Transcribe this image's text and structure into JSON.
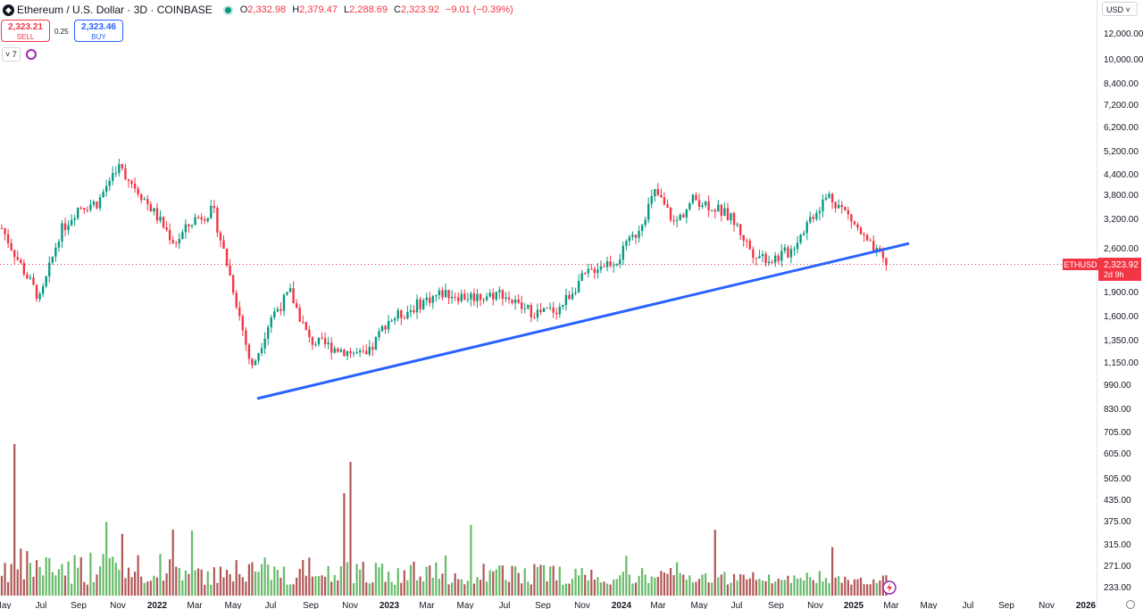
{
  "header": {
    "logo_glyph": "◆",
    "title": "Ethereum / U.S. Dollar · 3D · COINBASE",
    "ohlc": [
      {
        "key": "O",
        "value": "2,332.98"
      },
      {
        "key": "H",
        "value": "2,379.47"
      },
      {
        "key": "L",
        "value": "2,288.69"
      },
      {
        "key": "C",
        "value": "2,323.92"
      }
    ],
    "change": "−9.01 (−0.39%)"
  },
  "trade": {
    "sell_price": "2,323.21",
    "sell_label": "SELL",
    "spread": "0.25",
    "buy_price": "2,323.46",
    "buy_label": "BUY"
  },
  "indicators": {
    "collapse_label": "˅ 7",
    "icon": "refresh-icon"
  },
  "currency_button": "USD ˅",
  "price_axis": {
    "labels": [
      "12,000.00",
      "10,000.00",
      "8,400.00",
      "7,200.00",
      "6,200.00",
      "5,200.00",
      "4,400.00",
      "3,800.00",
      "3,200.00",
      "2,600.00",
      "1,900.00",
      "1,600.00",
      "1,350.00",
      "1,150.00",
      "990.00",
      "830.00",
      "705.00",
      "605.00",
      "505.00",
      "435.00",
      "375.00",
      "315.00",
      "271.00",
      "233.00"
    ],
    "symbol_tag": "ETHUSD",
    "last_price": "2,323.92",
    "countdown": "2d 9h"
  },
  "time_axis": {
    "labels": [
      "May",
      "Jul",
      "Sep",
      "Nov",
      "2022",
      "Mar",
      "May",
      "Jul",
      "Sep",
      "Nov",
      "2023",
      "Mar",
      "May",
      "Jul",
      "Sep",
      "Nov",
      "2024",
      "Mar",
      "May",
      "Jul",
      "Sep",
      "Nov",
      "2025",
      "Mar",
      "May",
      "Jul",
      "Sep",
      "Nov",
      "2026"
    ],
    "bold_labels": [
      "2022",
      "2023",
      "2024",
      "2025",
      "2026"
    ]
  },
  "chart_data": {
    "type": "candlestick",
    "symbol": "ETHUSD",
    "interval": "3D",
    "scale": "log",
    "price_points": [
      [
        "May",
        3000
      ],
      [
        "Jun",
        2300
      ],
      [
        "Jul",
        1800
      ],
      [
        "Aug",
        2900
      ],
      [
        "Sep",
        3500
      ],
      [
        "Oct",
        3600
      ],
      [
        "Nov",
        4700
      ],
      [
        "Dec",
        4000
      ],
      [
        "Jan",
        3300
      ],
      [
        "Feb",
        2700
      ],
      [
        "Mar",
        3200
      ],
      [
        "Apr",
        3400
      ],
      [
        "May",
        2000
      ],
      [
        "Jun",
        1100
      ],
      [
        "Jul",
        1600
      ],
      [
        "Aug",
        1900
      ],
      [
        "Sep",
        1350
      ],
      [
        "Oct",
        1300
      ],
      [
        "Nov",
        1250
      ],
      [
        "Dec",
        1200
      ],
      [
        "Jan",
        1550
      ],
      [
        "Feb",
        1650
      ],
      [
        "Mar",
        1800
      ],
      [
        "Apr",
        1900
      ],
      [
        "May",
        1850
      ],
      [
        "Jun",
        1850
      ],
      [
        "Jul",
        1900
      ],
      [
        "Aug",
        1700
      ],
      [
        "Sep",
        1640
      ],
      [
        "Oct",
        1700
      ],
      [
        "Nov",
        2050
      ],
      [
        "Dec",
        2300
      ],
      [
        "Jan",
        2400
      ],
      [
        "Feb",
        2900
      ],
      [
        "Mar",
        3900
      ],
      [
        "Apr",
        3100
      ],
      [
        "May",
        3700
      ],
      [
        "Jun",
        3500
      ],
      [
        "Jul",
        3200
      ],
      [
        "Aug",
        2550
      ],
      [
        "Sep",
        2400
      ],
      [
        "Oct",
        2550
      ],
      [
        "Nov",
        3200
      ],
      [
        "Dec",
        3800
      ],
      [
        "Jan",
        3300
      ],
      [
        "Feb",
        2700
      ],
      [
        "Mar",
        2324
      ]
    ],
    "trendline": {
      "from": [
        "Jun 2022",
        880
      ],
      "to": [
        "Mar 2025",
        2750
      ],
      "color": "#2962ff"
    },
    "last_price": 2323.92,
    "volume_visible": true,
    "up_color": "#089981",
    "down_color": "#f23645"
  }
}
